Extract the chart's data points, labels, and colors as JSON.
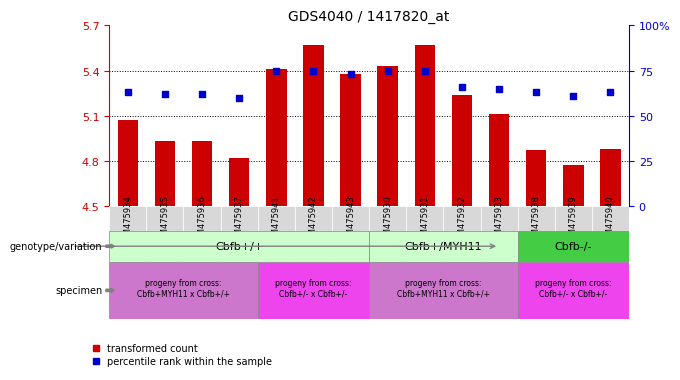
{
  "title": "GDS4040 / 1417820_at",
  "samples": [
    "GSM475934",
    "GSM475935",
    "GSM475936",
    "GSM475937",
    "GSM475941",
    "GSM475942",
    "GSM475943",
    "GSM475930",
    "GSM475931",
    "GSM475932",
    "GSM475933",
    "GSM475938",
    "GSM475939",
    "GSM475940"
  ],
  "bar_values": [
    5.07,
    4.93,
    4.93,
    4.82,
    5.41,
    5.57,
    5.38,
    5.43,
    5.57,
    5.24,
    5.11,
    4.87,
    4.77,
    4.88
  ],
  "dot_values": [
    63,
    62,
    62,
    60,
    75,
    75,
    73,
    75,
    75,
    66,
    65,
    63,
    61,
    63
  ],
  "ylim_left": [
    4.5,
    5.7
  ],
  "ylim_right": [
    0,
    100
  ],
  "yticks_left": [
    4.5,
    4.8,
    5.1,
    5.4,
    5.7
  ],
  "ytick_labels_left": [
    "4.5",
    "4.8",
    "5.1",
    "5.4",
    "5.7"
  ],
  "yticks_right": [
    0,
    25,
    50,
    75,
    100
  ],
  "ytick_labels_right": [
    "0",
    "25",
    "50",
    "75",
    "100%"
  ],
  "bar_color": "#cc0000",
  "dot_color": "#0000cc",
  "left_axis_color": "#cc0000",
  "right_axis_color": "#0000cc",
  "sample_bg_color": "#d0d0d0",
  "genotype_groups": [
    {
      "label": "Cbfb+/+",
      "start": 0,
      "end": 6,
      "color": "#ccffcc"
    },
    {
      "label": "Cbfb+/MYH11",
      "start": 7,
      "end": 10,
      "color": "#ccffcc"
    },
    {
      "label": "Cbfb-/-",
      "start": 11,
      "end": 13,
      "color": "#44cc44"
    }
  ],
  "specimen_groups": [
    {
      "label": "progeny from cross:\nCbfb+MYH11 x Cbfb+/+",
      "start": 0,
      "end": 3,
      "color": "#cc77cc"
    },
    {
      "label": "progeny from cross:\nCbfb+/- x Cbfb+/-",
      "start": 4,
      "end": 6,
      "color": "#ee44ee"
    },
    {
      "label": "progeny from cross:\nCbfb+MYH11 x Cbfb+/+",
      "start": 7,
      "end": 10,
      "color": "#cc77cc"
    },
    {
      "label": "progeny from cross:\nCbfb+/- x Cbfb+/-",
      "start": 11,
      "end": 13,
      "color": "#ee44ee"
    }
  ],
  "legend_red": "transformed count",
  "legend_blue": "percentile rank within the sample",
  "label_genotype": "genotype/variation",
  "label_specimen": "specimen"
}
